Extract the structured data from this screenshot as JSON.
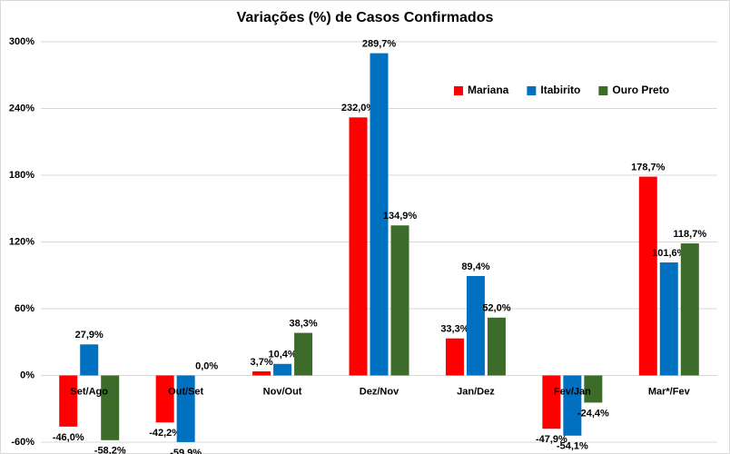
{
  "chart_data": {
    "type": "bar",
    "title": "Variações (%) de Casos Confirmados",
    "categories": [
      "Set/Ago",
      "Out/Set",
      "Nov/Out",
      "Dez/Nov",
      "Jan/Dez",
      "Fev/Jan",
      "Mar*/Fev"
    ],
    "series": [
      {
        "name": "Mariana",
        "color": "#ff0000",
        "values": [
          -46.0,
          -42.2,
          3.7,
          232.0,
          33.3,
          -47.9,
          178.7
        ],
        "value_labels": [
          "-46,0%",
          "-42,2%",
          "3,7%",
          "232,0%",
          "33,3%",
          "-47,9%",
          "178,7%"
        ]
      },
      {
        "name": "Itabirito",
        "color": "#0070c0",
        "values": [
          27.9,
          -59.9,
          10.4,
          289.7,
          89.4,
          -54.1,
          101.6
        ],
        "value_labels": [
          "27,9%",
          "-59,9%",
          "10,4%",
          "289,7%",
          "89,4%",
          "-54,1%",
          "101,6%"
        ]
      },
      {
        "name": "Ouro Preto",
        "color": "#3d6b2a",
        "values": [
          -58.2,
          0.0,
          38.3,
          134.9,
          52.0,
          -24.4,
          118.7
        ],
        "value_labels": [
          "-58,2%",
          "0,0%",
          "38,3%",
          "134,9%",
          "52,0%",
          "-24,4%",
          "118,7%"
        ]
      }
    ],
    "ylim": [
      -60,
      300
    ],
    "yticks": [
      {
        "value": -60,
        "label": "-60%"
      },
      {
        "value": 0,
        "label": "0%"
      },
      {
        "value": 60,
        "label": "60%"
      },
      {
        "value": 120,
        "label": "120%"
      },
      {
        "value": 180,
        "label": "180%"
      },
      {
        "value": 240,
        "label": "240%"
      },
      {
        "value": 300,
        "label": "300%"
      }
    ],
    "grid": true,
    "legend": "upper right"
  }
}
